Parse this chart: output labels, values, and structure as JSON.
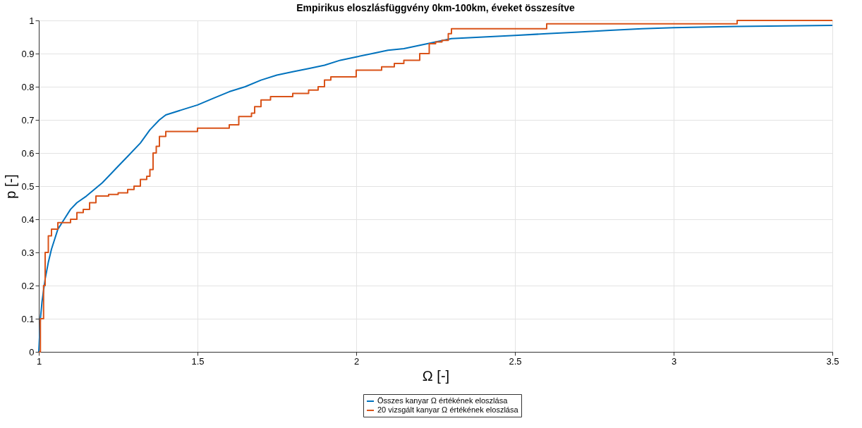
{
  "chart_data": {
    "type": "line",
    "title": "Empirikus eloszlásfüggvény 0km-100km, éveket összesítve",
    "xlabel": "Ω [-]",
    "ylabel": "p [-]",
    "xlim": [
      1,
      3.5
    ],
    "xticks": [
      1,
      1.5,
      2,
      2.5,
      3,
      3.5
    ],
    "ylim": [
      0,
      1
    ],
    "yticks": [
      0,
      0.1,
      0.2,
      0.3,
      0.4,
      0.5,
      0.6,
      0.7,
      0.8,
      0.9,
      1
    ],
    "grid": true,
    "legend": "bottom",
    "series": [
      {
        "name": "Összes kanyar Ω értékének eloszlása",
        "color": "#0072bd",
        "type": "line",
        "x": [
          1,
          1.005,
          1.01,
          1.02,
          1.03,
          1.04,
          1.05,
          1.06,
          1.08,
          1.1,
          1.12,
          1.15,
          1.2,
          1.25,
          1.28,
          1.32,
          1.35,
          1.38,
          1.4,
          1.45,
          1.5,
          1.55,
          1.6,
          1.65,
          1.7,
          1.75,
          1.8,
          1.85,
          1.9,
          1.95,
          2.0,
          2.05,
          2.1,
          2.15,
          2.2,
          2.25,
          2.3,
          2.4,
          2.5,
          2.6,
          2.7,
          2.8,
          2.9,
          3.0,
          3.2,
          3.5
        ],
        "values": [
          0,
          0.1,
          0.15,
          0.22,
          0.27,
          0.31,
          0.34,
          0.37,
          0.4,
          0.43,
          0.45,
          0.47,
          0.51,
          0.56,
          0.59,
          0.63,
          0.67,
          0.7,
          0.715,
          0.73,
          0.745,
          0.765,
          0.785,
          0.8,
          0.82,
          0.835,
          0.845,
          0.855,
          0.865,
          0.88,
          0.89,
          0.9,
          0.91,
          0.915,
          0.925,
          0.935,
          0.945,
          0.95,
          0.955,
          0.96,
          0.965,
          0.97,
          0.975,
          0.978,
          0.982,
          0.985
        ]
      },
      {
        "name": "20 vizsgált kanyar Ω értékének eloszlása",
        "color": "#d95319",
        "type": "step",
        "x": [
          1,
          1.005,
          1.015,
          1.02,
          1.03,
          1.04,
          1.06,
          1.1,
          1.12,
          1.14,
          1.16,
          1.18,
          1.22,
          1.25,
          1.28,
          1.3,
          1.32,
          1.34,
          1.35,
          1.36,
          1.37,
          1.38,
          1.4,
          1.5,
          1.6,
          1.63,
          1.67,
          1.68,
          1.7,
          1.73,
          1.8,
          1.85,
          1.88,
          1.9,
          1.92,
          2.0,
          2.08,
          2.12,
          2.15,
          2.2,
          2.23,
          2.25,
          2.27,
          2.29,
          2.3,
          2.6,
          3.2,
          3.5
        ],
        "values": [
          0,
          0.1,
          0.2,
          0.3,
          0.35,
          0.37,
          0.39,
          0.4,
          0.42,
          0.43,
          0.45,
          0.47,
          0.475,
          0.48,
          0.49,
          0.5,
          0.52,
          0.53,
          0.55,
          0.6,
          0.62,
          0.65,
          0.665,
          0.675,
          0.685,
          0.71,
          0.72,
          0.74,
          0.76,
          0.77,
          0.78,
          0.79,
          0.8,
          0.82,
          0.83,
          0.85,
          0.86,
          0.87,
          0.88,
          0.9,
          0.93,
          0.935,
          0.94,
          0.96,
          0.975,
          0.99,
          1,
          1
        ]
      }
    ]
  }
}
